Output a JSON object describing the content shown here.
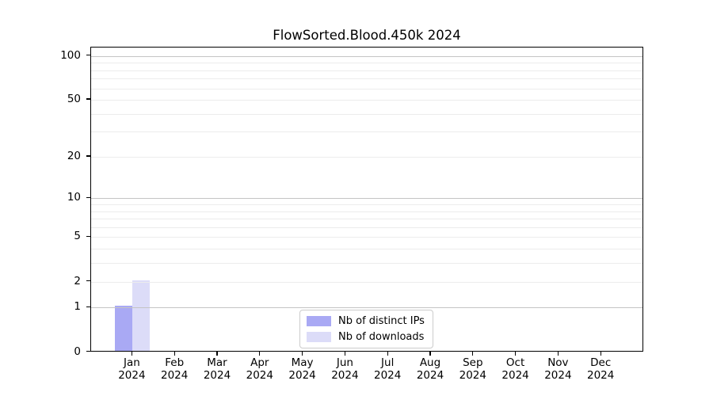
{
  "title": "FlowSorted.Blood.450k 2024",
  "colors": {
    "background": "#ffffff",
    "axis": "#000000",
    "grid_major": "#c4c4c4",
    "grid_minor": "#ececec",
    "legend_border": "#cccccc",
    "series_ips": "#a9a9f4",
    "series_downloads": "#dcdcf8"
  },
  "chart_data": {
    "type": "bar",
    "title": "FlowSorted.Blood.450k 2024",
    "y_scale": "log1p",
    "grid": true,
    "categories": [
      "Jan",
      "Feb",
      "Mar",
      "Apr",
      "May",
      "Jun",
      "Jul",
      "Aug",
      "Sep",
      "Oct",
      "Nov",
      "Dec"
    ],
    "category_year": "2024",
    "series": [
      {
        "name": "Nb of distinct IPs",
        "color": "#a9a9f4",
        "values": [
          1,
          0,
          0,
          0,
          0,
          0,
          0,
          0,
          0,
          0,
          0,
          0
        ]
      },
      {
        "name": "Nb of downloads",
        "color": "#dcdcf8",
        "values": [
          2,
          0,
          0,
          0,
          0,
          0,
          0,
          0,
          0,
          0,
          0,
          0
        ]
      }
    ],
    "y_axis": {
      "labeled_ticks": [
        0,
        1,
        2,
        5,
        10,
        20,
        50,
        100
      ],
      "major_gridlines": [
        1,
        10,
        100
      ],
      "minor_gridlines": [
        2,
        3,
        4,
        5,
        6,
        7,
        8,
        9,
        20,
        30,
        40,
        50,
        60,
        70,
        80,
        90
      ],
      "top_value": 115,
      "ylim": [
        0,
        115
      ]
    },
    "legend": {
      "position": "bottom-center"
    }
  }
}
